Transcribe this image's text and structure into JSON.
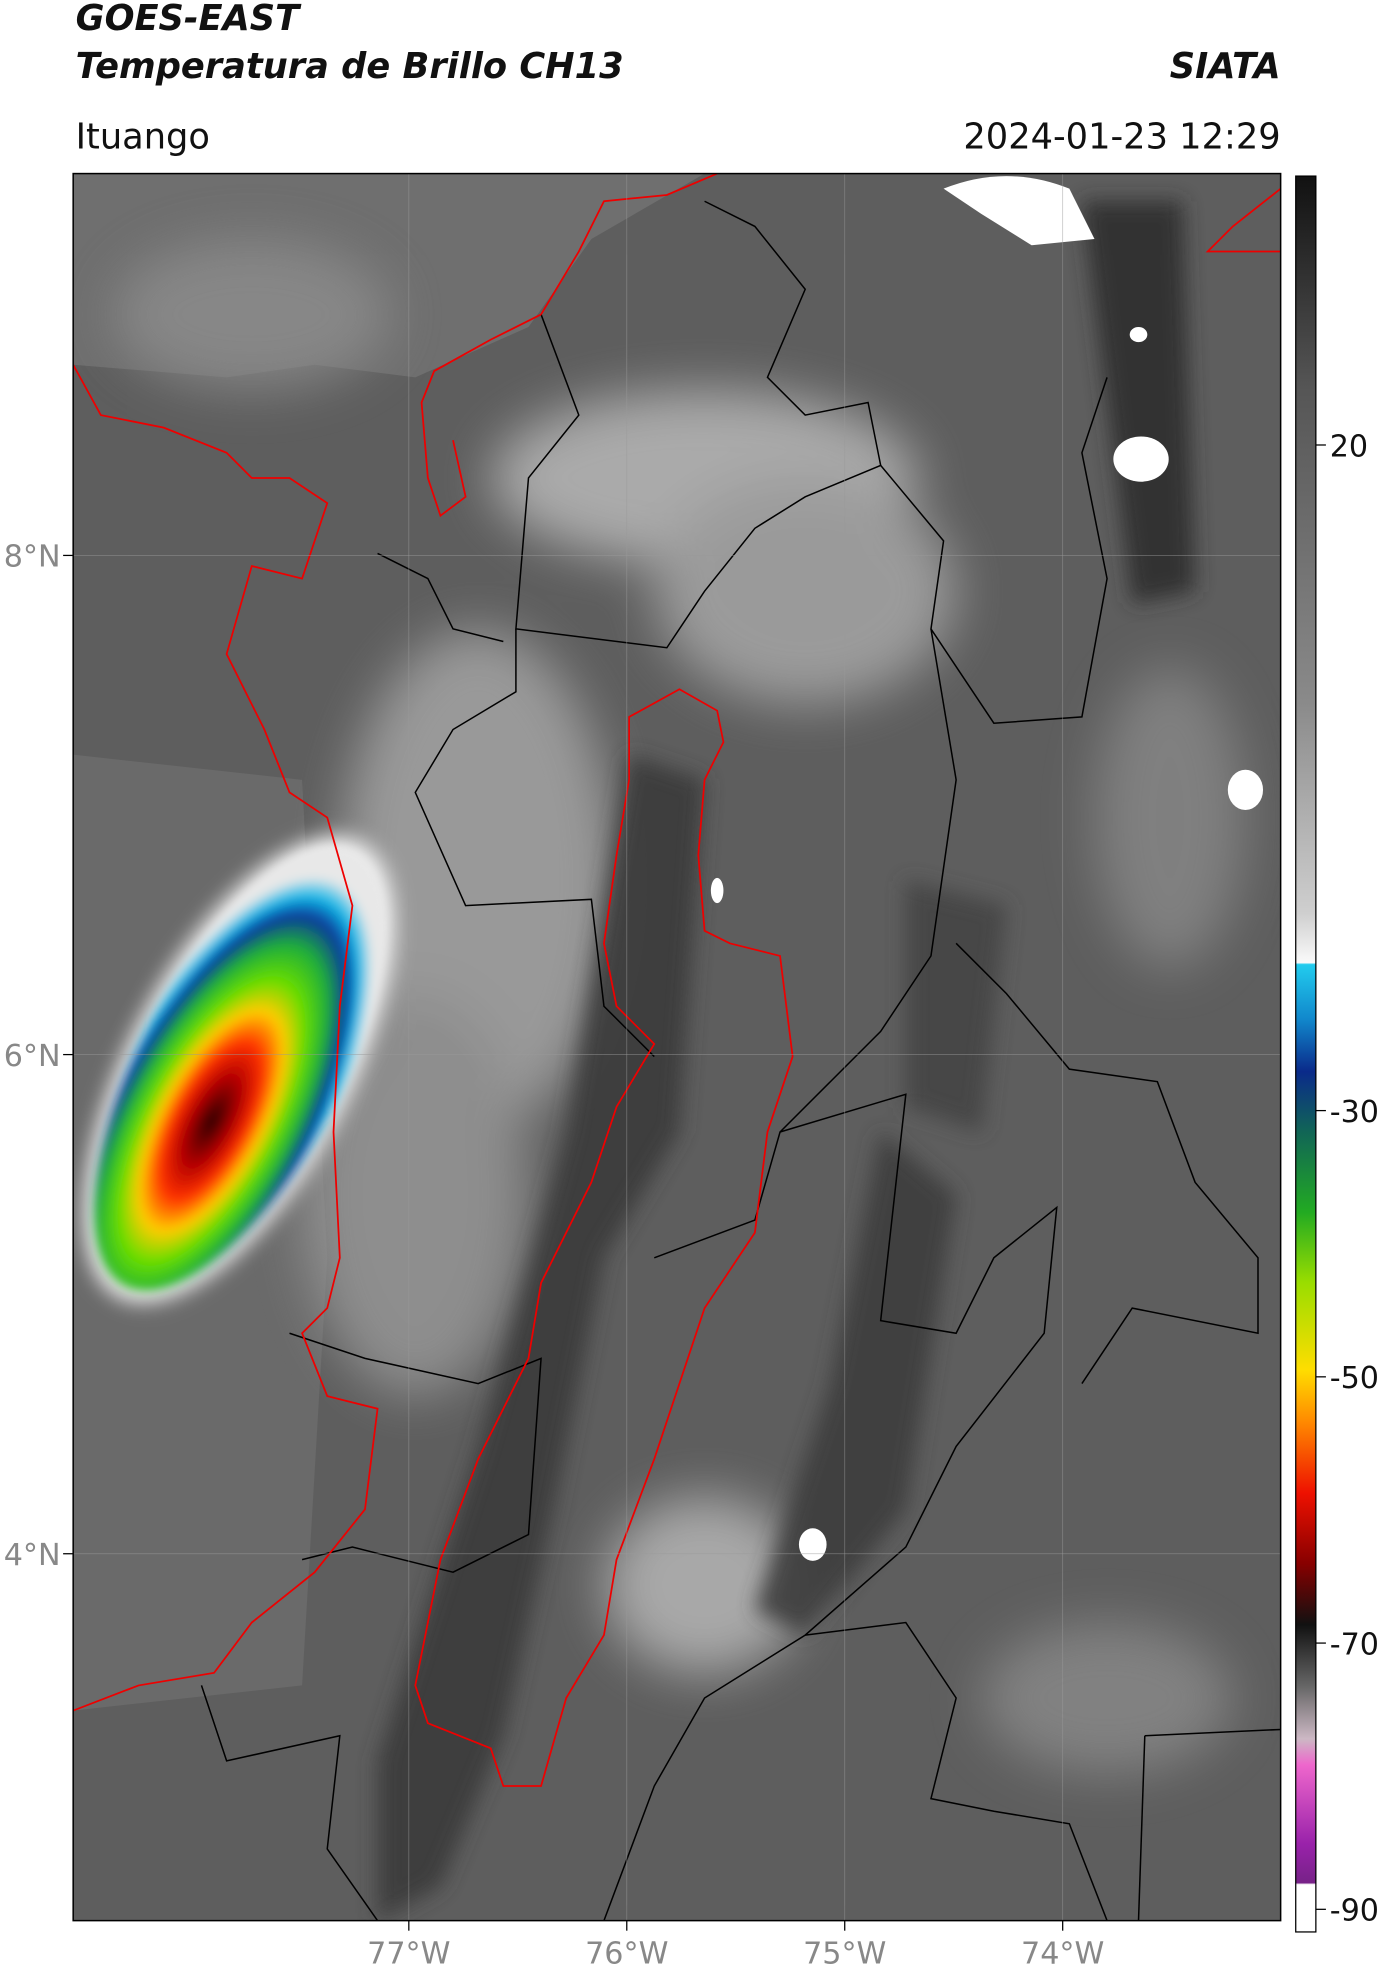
{
  "map": {
    "title": "GOES-EAST",
    "subtitle": "Temperatura de Brillo CH13",
    "source": "SIATA",
    "region": "Ituango",
    "datetime": "2024-01-23 12:29",
    "xlim": [
      -78.54,
      -73.0
    ],
    "ylim": [
      2.53,
      9.53
    ],
    "xticks": [
      {
        "value": -77,
        "label": "77°W"
      },
      {
        "value": -76,
        "label": "76°W"
      },
      {
        "value": -75,
        "label": "75°W"
      },
      {
        "value": -74,
        "label": "74°W"
      }
    ],
    "yticks": [
      {
        "value": 8,
        "label": "8°N"
      },
      {
        "value": 6,
        "label": "6°N"
      },
      {
        "value": 4,
        "label": "4°N"
      }
    ],
    "colorbar": {
      "lim": [
        40.2,
        -91.7
      ],
      "ticks": [
        20,
        -30,
        -50,
        -70,
        -90
      ]
    }
  }
}
